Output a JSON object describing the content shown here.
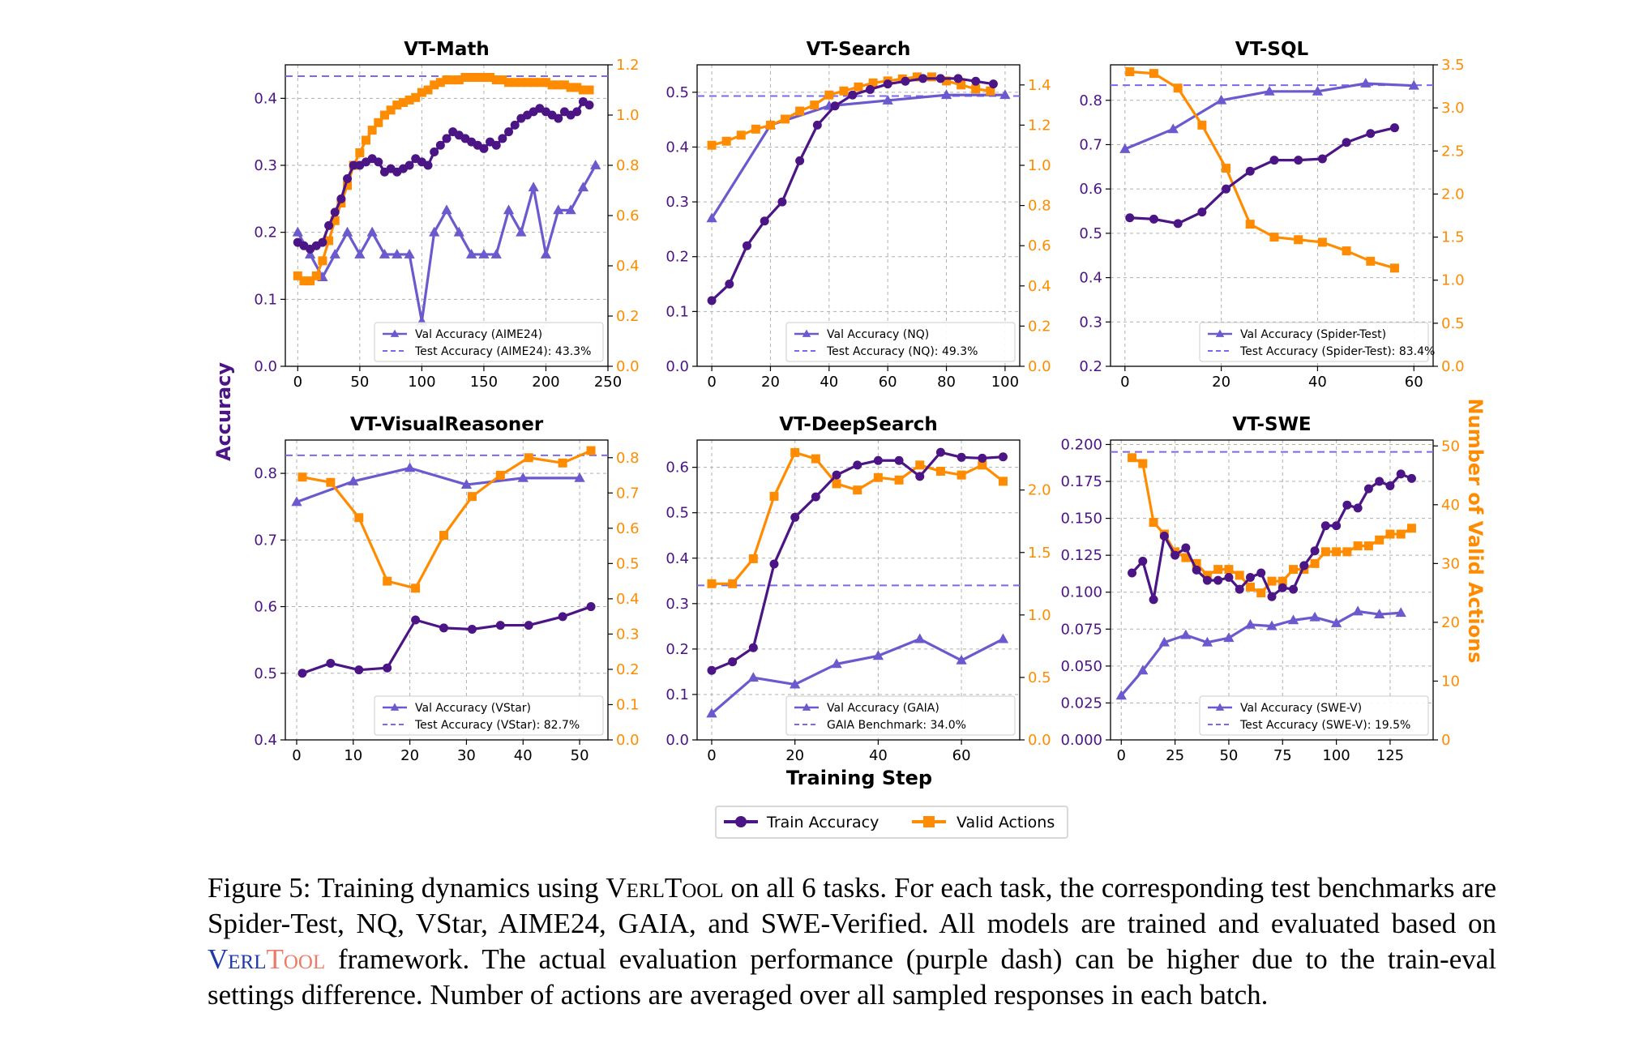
{
  "colors": {
    "train": "#4b1585",
    "valid": "#ff8c00",
    "val": "#6a5acd",
    "dash": "#7b68ee",
    "grid": "#b0b0b0"
  },
  "axes_labels": {
    "left": "Accuracy",
    "right": "Number of Valid Actions",
    "bottom": "Training Step"
  },
  "legend": {
    "train": "Train Accuracy",
    "valid": "Valid Actions"
  },
  "caption": {
    "label": "Figure 5:",
    "p1": " Training dynamics using ",
    "verltool": "VerlTool",
    "p2": " on all 6 tasks. For each task, the corresponding test benchmarks are Spider-Test, NQ, VStar, AIME24, GAIA, and SWE-Verified. All models are trained and evaluated based on ",
    "brand_a": "Verl",
    "brand_b": "Tool",
    "p3": " framework. The actual evaluation performance (purple dash) can be higher due to the train-eval settings difference. Number of actions are averaged over all sampled responses in each batch."
  },
  "chart_data": [
    {
      "type": "line",
      "title": "VT-Math",
      "xlim": [
        -10,
        250
      ],
      "xticks": [
        0,
        50,
        100,
        150,
        200,
        250
      ],
      "ylim": [
        0,
        0.45
      ],
      "yticks": [
        0.0,
        0.1,
        0.2,
        0.3,
        0.4
      ],
      "y2lim": [
        0,
        1.2
      ],
      "y2ticks": [
        0.0,
        0.2,
        0.4,
        0.6,
        0.8,
        1.0,
        1.2
      ],
      "dash_y": 0.433,
      "legend_val": "Val Accuracy (AIME24)",
      "legend_test": "Test Accuracy (AIME24): 43.3%",
      "train": {
        "x": [
          0,
          5,
          10,
          15,
          20,
          25,
          30,
          35,
          40,
          45,
          50,
          55,
          60,
          65,
          70,
          75,
          80,
          85,
          90,
          95,
          100,
          105,
          110,
          115,
          120,
          125,
          130,
          135,
          140,
          145,
          150,
          155,
          160,
          165,
          170,
          175,
          180,
          185,
          190,
          195,
          200,
          205,
          210,
          215,
          220,
          225,
          230,
          235
        ],
        "y": [
          0.185,
          0.18,
          0.175,
          0.18,
          0.185,
          0.21,
          0.23,
          0.25,
          0.28,
          0.3,
          0.3,
          0.305,
          0.31,
          0.305,
          0.29,
          0.295,
          0.29,
          0.295,
          0.3,
          0.31,
          0.305,
          0.3,
          0.32,
          0.33,
          0.34,
          0.35,
          0.345,
          0.34,
          0.335,
          0.33,
          0.325,
          0.335,
          0.33,
          0.34,
          0.35,
          0.36,
          0.37,
          0.375,
          0.38,
          0.385,
          0.38,
          0.375,
          0.37,
          0.38,
          0.375,
          0.38,
          0.395,
          0.39
        ]
      },
      "valid": {
        "x": [
          0,
          5,
          10,
          15,
          20,
          25,
          30,
          35,
          40,
          45,
          50,
          55,
          60,
          65,
          70,
          75,
          80,
          85,
          90,
          95,
          100,
          105,
          110,
          115,
          120,
          125,
          130,
          135,
          140,
          145,
          150,
          155,
          160,
          165,
          170,
          175,
          180,
          185,
          190,
          195,
          200,
          205,
          210,
          215,
          220,
          225,
          230,
          235
        ],
        "y": [
          0.36,
          0.34,
          0.34,
          0.36,
          0.42,
          0.5,
          0.58,
          0.65,
          0.72,
          0.8,
          0.85,
          0.9,
          0.94,
          0.97,
          1.0,
          1.02,
          1.04,
          1.05,
          1.06,
          1.07,
          1.09,
          1.1,
          1.12,
          1.13,
          1.14,
          1.14,
          1.14,
          1.15,
          1.15,
          1.15,
          1.15,
          1.15,
          1.14,
          1.14,
          1.13,
          1.13,
          1.13,
          1.13,
          1.13,
          1.13,
          1.13,
          1.12,
          1.12,
          1.12,
          1.11,
          1.11,
          1.1,
          1.1
        ]
      },
      "val": {
        "x": [
          0,
          10,
          20,
          30,
          40,
          50,
          60,
          70,
          80,
          90,
          100,
          110,
          120,
          130,
          140,
          150,
          160,
          170,
          180,
          190,
          200,
          210,
          220,
          230,
          240
        ],
        "y": [
          0.2,
          0.167,
          0.133,
          0.167,
          0.2,
          0.167,
          0.2,
          0.167,
          0.167,
          0.167,
          0.067,
          0.2,
          0.233,
          0.2,
          0.167,
          0.167,
          0.167,
          0.233,
          0.2,
          0.267,
          0.167,
          0.233,
          0.233,
          0.267,
          0.3
        ]
      }
    },
    {
      "type": "line",
      "title": "VT-Search",
      "xlim": [
        -5,
        105
      ],
      "xticks": [
        0,
        20,
        40,
        60,
        80,
        100
      ],
      "ylim": [
        0,
        0.55
      ],
      "yticks": [
        0.0,
        0.1,
        0.2,
        0.3,
        0.4,
        0.5
      ],
      "y2lim": [
        0,
        1.5
      ],
      "y2ticks": [
        0.0,
        0.2,
        0.4,
        0.6,
        0.8,
        1.0,
        1.2,
        1.4
      ],
      "dash_y": 0.493,
      "legend_val": "Val Accuracy (NQ)",
      "legend_test": "Test Accuracy (NQ): 49.3%",
      "train": {
        "x": [
          0,
          6,
          12,
          18,
          24,
          30,
          36,
          42,
          48,
          54,
          60,
          66,
          72,
          78,
          84,
          90,
          96
        ],
        "y": [
          0.12,
          0.15,
          0.22,
          0.265,
          0.3,
          0.375,
          0.44,
          0.475,
          0.495,
          0.505,
          0.515,
          0.52,
          0.525,
          0.525,
          0.525,
          0.52,
          0.515
        ]
      },
      "valid": {
        "x": [
          0,
          5,
          10,
          15,
          20,
          25,
          30,
          35,
          40,
          45,
          50,
          55,
          60,
          65,
          70,
          75,
          80,
          85,
          90,
          95
        ],
        "y": [
          1.1,
          1.12,
          1.15,
          1.18,
          1.2,
          1.23,
          1.27,
          1.3,
          1.35,
          1.37,
          1.39,
          1.41,
          1.42,
          1.43,
          1.44,
          1.44,
          1.42,
          1.4,
          1.38,
          1.37
        ]
      },
      "val": {
        "x": [
          0,
          20,
          40,
          60,
          80,
          100
        ],
        "y": [
          0.27,
          0.44,
          0.475,
          0.485,
          0.495,
          0.495
        ]
      }
    },
    {
      "type": "line",
      "title": "VT-SQL",
      "xlim": [
        -3,
        64
      ],
      "xticks": [
        0,
        20,
        40,
        60
      ],
      "ylim": [
        0.2,
        0.88
      ],
      "yticks": [
        0.2,
        0.3,
        0.4,
        0.5,
        0.6,
        0.7,
        0.8
      ],
      "y2lim": [
        0,
        3.5
      ],
      "y2ticks": [
        0.0,
        0.5,
        1.0,
        1.5,
        2.0,
        2.5,
        3.0,
        3.5
      ],
      "dash_y": 0.834,
      "legend_val": "Val Accuracy (Spider-Test)",
      "legend_test": "Test Accuracy (Spider-Test): 83.4%",
      "train": {
        "x": [
          1,
          6,
          11,
          16,
          21,
          26,
          31,
          36,
          41,
          46,
          51,
          56
        ],
        "y": [
          0.535,
          0.532,
          0.522,
          0.548,
          0.6,
          0.64,
          0.665,
          0.665,
          0.668,
          0.705,
          0.725,
          0.738
        ]
      },
      "valid": {
        "x": [
          1,
          6,
          11,
          16,
          21,
          26,
          31,
          36,
          41,
          46,
          51,
          56
        ],
        "y": [
          3.42,
          3.4,
          3.23,
          2.8,
          2.3,
          1.65,
          1.5,
          1.47,
          1.44,
          1.34,
          1.22,
          1.14
        ]
      },
      "val": {
        "x": [
          0,
          10,
          20,
          30,
          40,
          50,
          60
        ],
        "y": [
          0.69,
          0.735,
          0.8,
          0.82,
          0.82,
          0.838,
          0.833
        ]
      }
    },
    {
      "type": "line",
      "title": "VT-VisualReasoner",
      "xlim": [
        -2,
        55
      ],
      "xticks": [
        0,
        10,
        20,
        30,
        40,
        50
      ],
      "ylim": [
        0.4,
        0.85
      ],
      "yticks": [
        0.4,
        0.5,
        0.6,
        0.7,
        0.8
      ],
      "y2lim": [
        0,
        0.85
      ],
      "y2ticks": [
        0.0,
        0.1,
        0.2,
        0.3,
        0.4,
        0.5,
        0.6,
        0.7,
        0.8
      ],
      "dash_y": 0.827,
      "legend_val": "Val Accuracy (VStar)",
      "legend_test": "Test Accuracy (VStar): 82.7%",
      "train": {
        "x": [
          1,
          6,
          11,
          16,
          21,
          26,
          31,
          36,
          41,
          47,
          52
        ],
        "y": [
          0.5,
          0.515,
          0.505,
          0.508,
          0.58,
          0.568,
          0.566,
          0.572,
          0.572,
          0.585,
          0.6
        ]
      },
      "valid": {
        "x": [
          1,
          6,
          11,
          16,
          21,
          26,
          31,
          36,
          41,
          47,
          52
        ],
        "y": [
          0.745,
          0.73,
          0.63,
          0.45,
          0.43,
          0.58,
          0.69,
          0.75,
          0.8,
          0.785,
          0.82
        ]
      },
      "val": {
        "x": [
          0,
          10,
          20,
          30,
          40,
          50
        ],
        "y": [
          0.757,
          0.788,
          0.808,
          0.783,
          0.793,
          0.793
        ]
      }
    },
    {
      "type": "line",
      "title": "VT-DeepSearch",
      "xlim": [
        -3.5,
        74
      ],
      "xticks": [
        0,
        20,
        40,
        60
      ],
      "ylim": [
        0,
        0.66
      ],
      "yticks": [
        0.0,
        0.1,
        0.2,
        0.3,
        0.4,
        0.5,
        0.6
      ],
      "y2lim": [
        0,
        2.4
      ],
      "y2ticks": [
        0.0,
        0.5,
        1.0,
        1.5,
        2.0
      ],
      "dash_y": 0.34,
      "legend_val": "Val Accuracy (GAIA)",
      "legend_test": "GAIA Benchmark: 34.0%",
      "train": {
        "x": [
          0,
          5,
          10,
          15,
          20,
          25,
          30,
          35,
          40,
          45,
          50,
          55,
          60,
          65,
          70
        ],
        "y": [
          0.153,
          0.172,
          0.203,
          0.387,
          0.49,
          0.535,
          0.583,
          0.605,
          0.615,
          0.615,
          0.58,
          0.633,
          0.622,
          0.62,
          0.623
        ]
      },
      "valid": {
        "x": [
          0,
          5,
          10,
          15,
          20,
          25,
          30,
          35,
          40,
          45,
          50,
          55,
          60,
          65,
          70
        ],
        "y": [
          1.25,
          1.25,
          1.45,
          1.95,
          2.3,
          2.25,
          2.05,
          2.0,
          2.1,
          2.08,
          2.2,
          2.15,
          2.12,
          2.2,
          2.07
        ]
      },
      "val": {
        "x": [
          0,
          10,
          20,
          30,
          40,
          50,
          60,
          70
        ],
        "y": [
          0.058,
          0.137,
          0.122,
          0.167,
          0.185,
          0.222,
          0.175,
          0.222
        ]
      }
    },
    {
      "type": "line",
      "title": "VT-SWE",
      "xlim": [
        -5,
        145
      ],
      "xticks": [
        0,
        25,
        50,
        75,
        100,
        125
      ],
      "ylim": [
        0,
        0.203
      ],
      "yticks": [
        0.0,
        0.025,
        0.05,
        0.075,
        0.1,
        0.125,
        0.15,
        0.175,
        0.2
      ],
      "y2lim": [
        0,
        51
      ],
      "y2ticks": [
        0,
        10,
        20,
        30,
        40,
        50
      ],
      "dash_y": 0.195,
      "legend_val": "Val Accuracy (SWE-V)",
      "legend_test": "Test Accuracy (SWE-V): 19.5%",
      "train": {
        "x": [
          5,
          10,
          15,
          20,
          25,
          30,
          35,
          40,
          45,
          50,
          55,
          60,
          65,
          70,
          75,
          80,
          85,
          90,
          95,
          100,
          105,
          110,
          115,
          120,
          125,
          130,
          135
        ],
        "y": [
          0.113,
          0.121,
          0.095,
          0.138,
          0.125,
          0.13,
          0.115,
          0.108,
          0.108,
          0.11,
          0.102,
          0.11,
          0.113,
          0.097,
          0.103,
          0.102,
          0.118,
          0.128,
          0.145,
          0.145,
          0.159,
          0.157,
          0.17,
          0.175,
          0.172,
          0.18,
          0.177
        ]
      },
      "valid": {
        "x": [
          5,
          10,
          15,
          20,
          25,
          30,
          35,
          40,
          45,
          50,
          55,
          60,
          65,
          70,
          75,
          80,
          85,
          90,
          95,
          100,
          105,
          110,
          115,
          120,
          125,
          130,
          135
        ],
        "y": [
          48,
          47,
          37,
          35,
          32,
          31,
          30,
          28,
          29,
          29,
          28,
          26,
          25,
          27,
          27,
          29,
          29,
          30,
          32,
          32,
          32,
          33,
          33,
          34,
          35,
          35,
          36
        ]
      },
      "val": {
        "x": [
          0,
          10,
          20,
          30,
          40,
          50,
          60,
          70,
          80,
          90,
          100,
          110,
          120,
          130
        ],
        "y": [
          0.03,
          0.047,
          0.066,
          0.071,
          0.066,
          0.069,
          0.078,
          0.077,
          0.081,
          0.083,
          0.079,
          0.087,
          0.085,
          0.086
        ]
      }
    }
  ]
}
